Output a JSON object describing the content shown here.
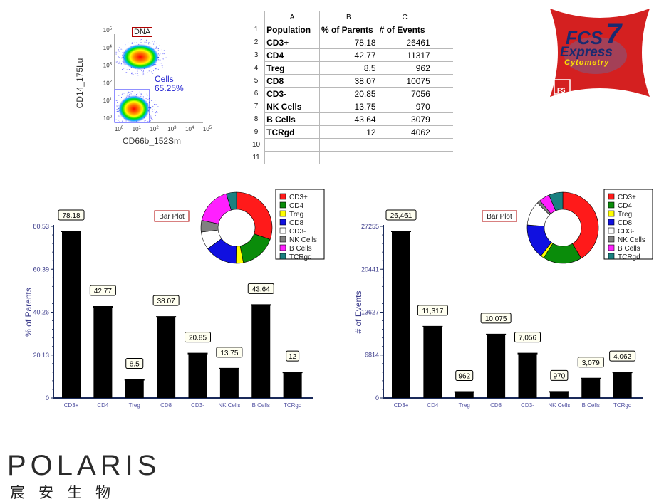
{
  "dot_plot": {
    "gate_label": "DNA",
    "xlabel": "CD66b_152Sm",
    "ylabel": "CD14_175Lu",
    "region_name": "Cells",
    "region_pct": "65.25%",
    "x_ticks": [
      "10^0",
      "10^1",
      "10^2",
      "10^3",
      "10^4",
      "10^5"
    ],
    "y_ticks": [
      "10^0",
      "10^1",
      "10^2",
      "10^3",
      "10^4",
      "10^5"
    ]
  },
  "spreadsheet": {
    "col_headers": [
      "A",
      "B",
      "C"
    ],
    "row_numbers": [
      "1",
      "2",
      "3",
      "4",
      "5",
      "6",
      "7",
      "8",
      "9",
      "10",
      "11"
    ],
    "header": [
      "Population",
      "% of Parents",
      "# of Events"
    ],
    "rows": [
      [
        "CD3+",
        "78.18",
        "26461"
      ],
      [
        "CD4",
        "42.77",
        "11317"
      ],
      [
        "Treg",
        "8.5",
        "962"
      ],
      [
        "CD8",
        "38.07",
        "10075"
      ],
      [
        "CD3-",
        "20.85",
        "7056"
      ],
      [
        "NK Cells",
        "13.75",
        "970"
      ],
      [
        "B Cells",
        "43.64",
        "3079"
      ],
      [
        "TCRgd",
        "12",
        "4062"
      ]
    ]
  },
  "fcs_logo": {
    "line1": "FCS",
    "line2": "7",
    "line3": "Express",
    "line4": "Cytometry"
  },
  "brand": {
    "name": "POLARIS",
    "name_cn": "宸安生物"
  },
  "legend": {
    "items": [
      "CD3+",
      "CD4",
      "Treg",
      "CD8",
      "CD3-",
      "NK Cells",
      "B Cells",
      "TCRgd"
    ],
    "colors": [
      "#ff1a1a",
      "#0a8c0a",
      "#ffff00",
      "#1010e0",
      "#ffffff",
      "#808080",
      "#ff20ff",
      "#1a8080"
    ]
  },
  "chart_data": [
    {
      "type": "bar",
      "title": "Bar Plot",
      "xlabel": "",
      "ylabel": "% of Parents",
      "categories": [
        "CD3+",
        "CD4",
        "Treg",
        "CD8",
        "CD3-",
        "NK Cells",
        "B Cells",
        "TCRgd"
      ],
      "values": [
        78.18,
        42.77,
        8.5,
        38.07,
        20.85,
        13.75,
        43.64,
        12
      ],
      "value_labels": [
        "78.18",
        "42.77",
        "8.5",
        "38.07",
        "20.85",
        "13.75",
        "43.64",
        "12"
      ],
      "ylim": [
        0,
        80.53
      ],
      "y_ticks": [
        "0",
        "20.13",
        "40.26",
        "60.39",
        "80.53"
      ],
      "y_tick_values": [
        0,
        20.13,
        40.26,
        60.39,
        80.53
      ],
      "bar_color": "#000000",
      "inset_pie": {
        "type": "pie",
        "donut": true,
        "values": [
          78.18,
          42.77,
          8.5,
          38.07,
          20.85,
          13.75,
          43.64,
          12
        ]
      }
    },
    {
      "type": "bar",
      "title": "Bar Plot",
      "xlabel": "",
      "ylabel": "# of Events",
      "categories": [
        "CD3+",
        "CD4",
        "Treg",
        "CD8",
        "CD3-",
        "NK Cells",
        "B Cells",
        "TCRgd"
      ],
      "values": [
        26461,
        11317,
        962,
        10075,
        7056,
        970,
        3079,
        4062
      ],
      "value_labels": [
        "26,461",
        "11,317",
        "962",
        "10,075",
        "7,056",
        "970",
        "3,079",
        "4,062"
      ],
      "ylim": [
        0,
        27255
      ],
      "y_ticks": [
        "0",
        "6814",
        "13627",
        "20441",
        "27255"
      ],
      "y_tick_values": [
        0,
        6814,
        13627,
        20441,
        27255
      ],
      "bar_color": "#000000",
      "inset_pie": {
        "type": "pie",
        "donut": true,
        "values": [
          26461,
          11317,
          962,
          10075,
          7056,
          970,
          3079,
          4062
        ]
      }
    }
  ]
}
